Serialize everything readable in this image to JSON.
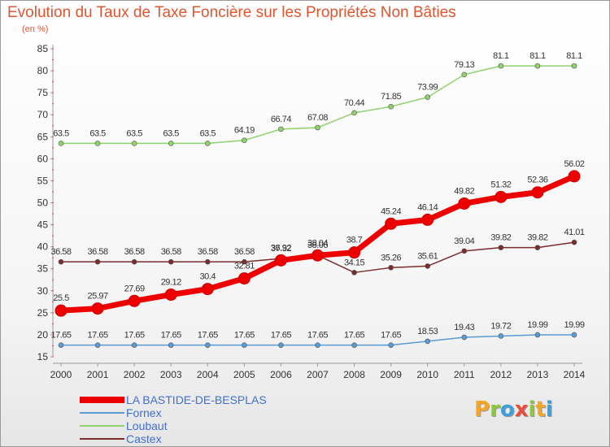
{
  "title": "Evolution du Taux de Taxe Foncière sur les Propriétés Non Bâties",
  "unit": "(en %)",
  "logo": {
    "text": "Proxiti",
    "letters": [
      {
        "ch": "P",
        "color": "#f5a623"
      },
      {
        "ch": "r",
        "color": "#8dc63f"
      },
      {
        "ch": "o",
        "color": "#3f9fd8"
      },
      {
        "ch": "x",
        "color": "#e74c3c"
      },
      {
        "ch": "i",
        "color": "#8dc63f"
      },
      {
        "ch": "t",
        "color": "#f5a623"
      },
      {
        "ch": "i",
        "color": "#3f9fd8"
      }
    ]
  },
  "chart_data": {
    "type": "line",
    "x": [
      "2000",
      "2001",
      "2002",
      "2003",
      "2004",
      "2005",
      "2006",
      "2007",
      "2008",
      "2009",
      "2010",
      "2011",
      "2012",
      "2013",
      "2014"
    ],
    "ylim": [
      15,
      85
    ],
    "yticks": [
      15,
      20,
      25,
      30,
      35,
      40,
      45,
      50,
      55,
      60,
      65,
      70,
      75,
      80,
      85
    ],
    "grid": false,
    "legend_position": "bottom-left",
    "series": [
      {
        "name": "LA BASTIDE-DE-BESPLAS",
        "color": "#ee0000",
        "legend_color": "#ee0000",
        "width": 7,
        "marker": 7,
        "values": [
          25.5,
          25.97,
          27.69,
          29.12,
          30.4,
          32.81,
          36.92,
          38.04,
          38.7,
          45.24,
          46.14,
          49.82,
          51.32,
          52.36,
          56.02
        ],
        "labels": [
          "25.5",
          "25.97",
          "27.69",
          "29.12",
          "30.4",
          "32.81",
          "36.92",
          "38.04",
          "38.7",
          "45.24",
          "46.14",
          "49.82",
          "51.32",
          "52.36",
          "56.02"
        ]
      },
      {
        "name": "Fornex",
        "color": "#5a9bd5",
        "legend_color": "#5a9bd5",
        "width": 1.5,
        "marker": 3,
        "values": [
          17.65,
          17.65,
          17.65,
          17.65,
          17.65,
          17.65,
          17.65,
          17.65,
          17.65,
          17.65,
          18.53,
          19.43,
          19.72,
          19.99,
          19.99
        ],
        "labels": [
          "17.65",
          "17.65",
          "17.65",
          "17.65",
          "17.65",
          "17.65",
          "17.65",
          "17.65",
          "17.65",
          "17.65",
          "18.53",
          "19.43",
          "19.72",
          "19.99",
          "19.99"
        ]
      },
      {
        "name": "Loubaut",
        "color": "#8fd16a",
        "legend_color": "#8fd16a",
        "width": 1.5,
        "marker": 3,
        "values": [
          63.5,
          63.5,
          63.5,
          63.5,
          63.5,
          64.19,
          66.74,
          67.08,
          70.44,
          71.85,
          73.99,
          79.13,
          81.1,
          81.1,
          81.1
        ],
        "labels": [
          "63.5",
          "63.5",
          "63.5",
          "63.5",
          "63.5",
          "64.19",
          "66.74",
          "67.08",
          "70.44",
          "71.85",
          "73.99",
          "79.13",
          "81.1",
          "81.1",
          "81.1"
        ]
      },
      {
        "name": "Castex",
        "color": "#7b2c2c",
        "legend_color": "#7b2c2c",
        "width": 1.5,
        "marker": 3,
        "values": [
          36.58,
          36.58,
          36.58,
          36.58,
          36.58,
          36.58,
          37.32,
          38.06,
          34.15,
          35.26,
          35.61,
          39.04,
          39.82,
          39.82,
          41.01
        ],
        "labels": [
          "36.58",
          "36.58",
          "36.58",
          "36.58",
          "36.58",
          "36.58",
          "37.32",
          "38.06",
          "34.15",
          "35.26",
          "35.61",
          "39.04",
          "39.82",
          "39.82",
          "41.01"
        ]
      }
    ]
  }
}
